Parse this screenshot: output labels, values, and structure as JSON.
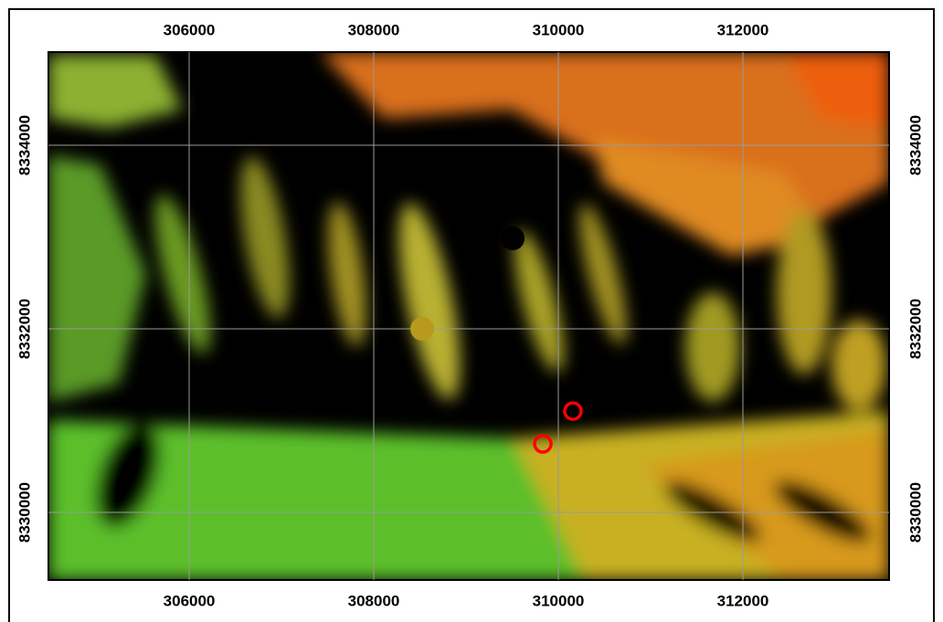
{
  "map": {
    "xlim": [
      304475,
      313584
    ],
    "ylim": [
      8329264,
      8335015
    ],
    "xticks": [
      306000,
      308000,
      310000,
      312000
    ],
    "yticks": [
      8330000,
      8332000,
      8334000
    ],
    "grid": true,
    "points": [
      {
        "x": 310158,
        "y": 8331104,
        "color": "#ff0000",
        "style": "ring"
      },
      {
        "x": 309832,
        "y": 8330746,
        "color": "#ff0000",
        "style": "ring"
      },
      {
        "x": 309505,
        "y": 8332985,
        "color": "#000000",
        "style": "dot"
      },
      {
        "x": 308525,
        "y": 8332000,
        "color": "#b89a1c",
        "style": "dot"
      }
    ]
  }
}
